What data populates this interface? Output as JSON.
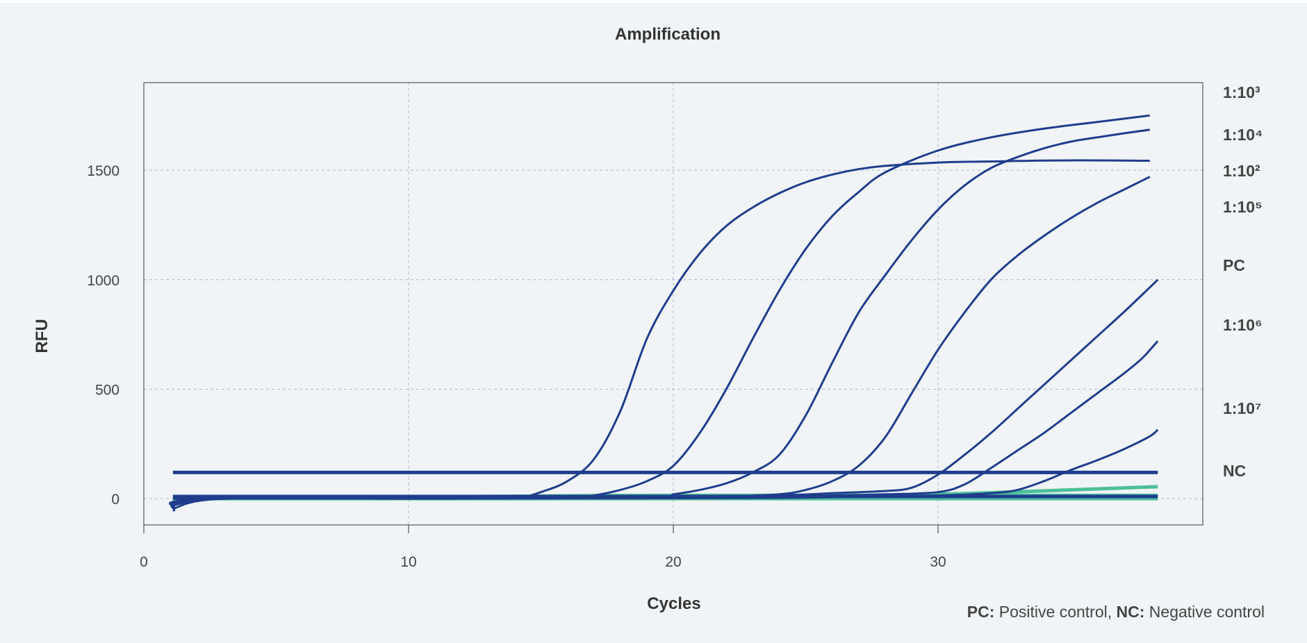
{
  "chart_data": {
    "type": "line",
    "title": "Amplification",
    "xlabel": "Cycles",
    "ylabel": "RFU",
    "xlim": [
      0,
      40
    ],
    "ylim": [
      -120,
      1900
    ],
    "x_ticks": [
      0,
      10,
      20,
      30
    ],
    "x_tick_labels": [
      "0",
      "10",
      "20",
      "30"
    ],
    "y_ticks": [
      0,
      500,
      1000,
      1500
    ],
    "y_tick_labels": [
      "0",
      "500",
      "1000",
      "1500"
    ],
    "grid": true,
    "threshold": 120,
    "colors": {
      "curve": "#1f3d8c",
      "negative": "#4dbf9a",
      "grid": "#a9b6d3",
      "frame": "#555555"
    },
    "series": [
      {
        "name": "1:10²",
        "values": [
          [
            1.1,
            -30
          ],
          [
            3,
            0
          ],
          [
            10,
            0
          ],
          [
            13,
            2
          ],
          [
            14.2,
            5
          ],
          [
            15,
            30
          ],
          [
            16,
            80
          ],
          [
            17,
            180
          ],
          [
            18,
            400
          ],
          [
            19,
            730
          ],
          [
            20,
            950
          ],
          [
            21,
            1120
          ],
          [
            22,
            1245
          ],
          [
            23,
            1330
          ],
          [
            24,
            1395
          ],
          [
            25,
            1445
          ],
          [
            26,
            1480
          ],
          [
            27,
            1505
          ],
          [
            28,
            1520
          ],
          [
            30,
            1535
          ],
          [
            32,
            1540
          ],
          [
            35,
            1545
          ],
          [
            38,
            1543
          ]
        ]
      },
      {
        "name": "1:10³",
        "values": [
          [
            1.1,
            -45
          ],
          [
            3,
            0
          ],
          [
            10,
            0
          ],
          [
            16,
            2
          ],
          [
            17,
            15
          ],
          [
            18,
            40
          ],
          [
            19,
            80
          ],
          [
            20,
            150
          ],
          [
            21,
            300
          ],
          [
            22,
            500
          ],
          [
            23,
            730
          ],
          [
            24,
            950
          ],
          [
            25,
            1140
          ],
          [
            26,
            1290
          ],
          [
            27,
            1400
          ],
          [
            28,
            1490
          ],
          [
            30,
            1590
          ],
          [
            32,
            1650
          ],
          [
            34,
            1690
          ],
          [
            36,
            1720
          ],
          [
            38,
            1750
          ]
        ]
      },
      {
        "name": "1:10⁴",
        "values": [
          [
            1.1,
            -55
          ],
          [
            3,
            0
          ],
          [
            19,
            5
          ],
          [
            20,
            20
          ],
          [
            21,
            40
          ],
          [
            22,
            70
          ],
          [
            23,
            120
          ],
          [
            24,
            200
          ],
          [
            25,
            380
          ],
          [
            26,
            620
          ],
          [
            27,
            850
          ],
          [
            28,
            1020
          ],
          [
            29,
            1180
          ],
          [
            30,
            1320
          ],
          [
            31,
            1430
          ],
          [
            32,
            1510
          ],
          [
            33,
            1560
          ],
          [
            34,
            1600
          ],
          [
            35,
            1630
          ],
          [
            36,
            1650
          ],
          [
            37,
            1668
          ],
          [
            38,
            1685
          ]
        ]
      },
      {
        "name": "1:10⁵",
        "values": [
          [
            1.1,
            -40
          ],
          [
            3,
            0
          ],
          [
            20,
            5
          ],
          [
            22,
            10
          ],
          [
            24,
            20
          ],
          [
            25,
            40
          ],
          [
            26,
            80
          ],
          [
            27,
            150
          ],
          [
            28,
            280
          ],
          [
            29,
            480
          ],
          [
            30,
            680
          ],
          [
            31,
            850
          ],
          [
            32,
            1000
          ],
          [
            33,
            1110
          ],
          [
            34,
            1200
          ],
          [
            35,
            1280
          ],
          [
            36,
            1350
          ],
          [
            37,
            1410
          ],
          [
            38,
            1470
          ]
        ]
      },
      {
        "name": "PC",
        "values": [
          [
            1.1,
            0
          ],
          [
            20,
            5
          ],
          [
            24,
            15
          ],
          [
            26,
            25
          ],
          [
            28,
            35
          ],
          [
            29,
            50
          ],
          [
            30,
            110
          ],
          [
            31,
            200
          ],
          [
            32,
            300
          ],
          [
            33,
            410
          ],
          [
            34,
            520
          ],
          [
            35,
            630
          ],
          [
            36,
            740
          ],
          [
            37,
            850
          ],
          [
            38,
            965
          ],
          [
            38.3,
            1000
          ]
        ]
      },
      {
        "name": "1:10⁶",
        "values": [
          [
            1.1,
            0
          ],
          [
            20,
            5
          ],
          [
            24,
            10
          ],
          [
            28,
            20
          ],
          [
            30,
            30
          ],
          [
            31,
            65
          ],
          [
            32,
            140
          ],
          [
            33,
            220
          ],
          [
            34,
            300
          ],
          [
            35,
            390
          ],
          [
            36,
            480
          ],
          [
            37,
            570
          ],
          [
            37.7,
            640
          ],
          [
            38.3,
            720
          ]
        ]
      },
      {
        "name": "1:10⁷",
        "values": [
          [
            1.1,
            0
          ],
          [
            20,
            2
          ],
          [
            25,
            5
          ],
          [
            30,
            15
          ],
          [
            32,
            25
          ],
          [
            33,
            40
          ],
          [
            34,
            80
          ],
          [
            35,
            130
          ],
          [
            36,
            175
          ],
          [
            37,
            225
          ],
          [
            38,
            285
          ],
          [
            38.3,
            315
          ]
        ]
      },
      {
        "name": "NC",
        "values": [
          [
            1.1,
            10
          ],
          [
            38.3,
            10
          ]
        ]
      }
    ],
    "extra_lines": [
      {
        "values": [
          [
            1.1,
            0
          ],
          [
            38.3,
            0
          ]
        ]
      },
      {
        "values": [
          [
            1.1,
            0
          ],
          [
            15,
            5
          ],
          [
            25,
            10
          ],
          [
            30,
            20
          ],
          [
            35,
            40
          ],
          [
            38.3,
            55
          ]
        ]
      },
      {
        "values": [
          [
            1.1,
            0
          ],
          [
            15,
            12
          ],
          [
            20,
            15
          ],
          [
            38.3,
            15
          ]
        ]
      }
    ],
    "label_order": [
      "1:10³",
      "1:10⁴",
      "1:10²",
      "1:10⁵",
      "PC",
      "1:10⁶",
      "1:10⁷",
      "NC"
    ],
    "footnote": {
      "pc_key": "PC:",
      "pc_text": " Positive control,",
      "nc_key": "NC:",
      "nc_text": " Negative control"
    }
  }
}
